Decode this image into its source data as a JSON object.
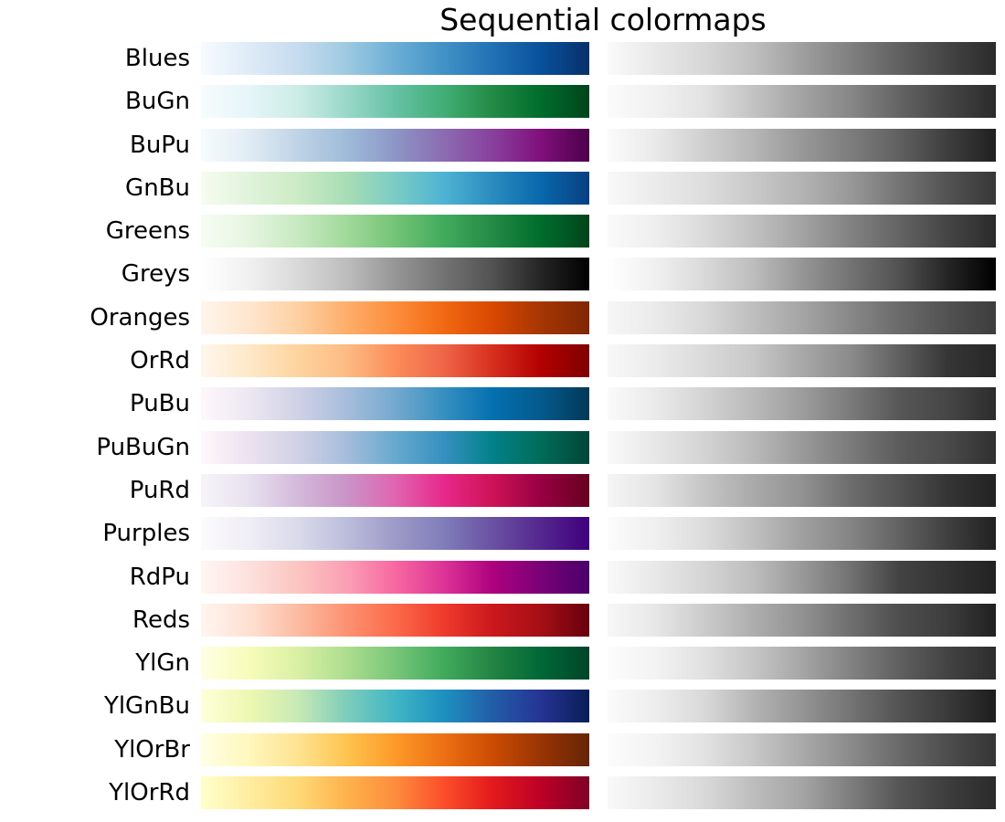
{
  "title": "Sequential colormaps",
  "chart_data": {
    "type": "heatmap",
    "title": "Sequential colormaps",
    "layout": "Each row: colormap name label (left), color gradient strip (center), grayscale luminance strip (right); no axes, no grid, no legend",
    "colormaps": [
      {
        "name": "Blues",
        "stops": [
          "#f7fbff",
          "#deebf7",
          "#c6dbef",
          "#9ecae1",
          "#6baed6",
          "#4292c6",
          "#2171b5",
          "#08519c",
          "#08306b"
        ]
      },
      {
        "name": "BuGn",
        "stops": [
          "#f7fcfd",
          "#e5f5f9",
          "#ccece6",
          "#99d8c9",
          "#66c2a4",
          "#41ae76",
          "#238b45",
          "#006d2c",
          "#00441b"
        ]
      },
      {
        "name": "BuPu",
        "stops": [
          "#f7fcfd",
          "#e0ecf4",
          "#bfd3e6",
          "#9ebcda",
          "#8c96c6",
          "#8c6bb1",
          "#88419d",
          "#810f7c",
          "#4d004b"
        ]
      },
      {
        "name": "GnBu",
        "stops": [
          "#f7fcf0",
          "#e0f3db",
          "#ccebc5",
          "#a8ddb5",
          "#7bccc4",
          "#4eb3d3",
          "#2b8cbe",
          "#0868ac",
          "#084081"
        ]
      },
      {
        "name": "Greens",
        "stops": [
          "#f7fcf5",
          "#e5f5e0",
          "#c7e9c0",
          "#a1d99b",
          "#74c476",
          "#41ab5d",
          "#238b45",
          "#006d2c",
          "#00441b"
        ]
      },
      {
        "name": "Greys",
        "stops": [
          "#ffffff",
          "#f0f0f0",
          "#d9d9d9",
          "#bdbdbd",
          "#969696",
          "#737373",
          "#525252",
          "#252525",
          "#000000"
        ]
      },
      {
        "name": "Oranges",
        "stops": [
          "#fff5eb",
          "#fee6ce",
          "#fdd0a2",
          "#fdae6b",
          "#fd8d3c",
          "#f16913",
          "#d94801",
          "#a63603",
          "#7f2704"
        ]
      },
      {
        "name": "OrRd",
        "stops": [
          "#fff7ec",
          "#fee8c8",
          "#fdd49e",
          "#fdbb84",
          "#fc8d59",
          "#ef6548",
          "#d7301f",
          "#b30000",
          "#7f0000"
        ]
      },
      {
        "name": "PuBu",
        "stops": [
          "#fff7fb",
          "#ece7f2",
          "#d0d1e6",
          "#a6bddb",
          "#74a9cf",
          "#3690c0",
          "#0570b0",
          "#045a8d",
          "#023858"
        ]
      },
      {
        "name": "PuBuGn",
        "stops": [
          "#fff7fb",
          "#ece2f0",
          "#d0d1e6",
          "#a6bddb",
          "#67a9cf",
          "#3690c0",
          "#02818a",
          "#016c59",
          "#014636"
        ]
      },
      {
        "name": "PuRd",
        "stops": [
          "#f7f4f9",
          "#e7e1ef",
          "#d4b9da",
          "#c994c7",
          "#df65b0",
          "#e7298a",
          "#ce1256",
          "#980043",
          "#67001f"
        ]
      },
      {
        "name": "Purples",
        "stops": [
          "#fcfbfd",
          "#efedf5",
          "#dadaeb",
          "#bcbddc",
          "#9e9ac8",
          "#807dba",
          "#6a51a3",
          "#54278f",
          "#3f007d"
        ]
      },
      {
        "name": "RdPu",
        "stops": [
          "#fff7f3",
          "#fde0dd",
          "#fcc5c0",
          "#fa9fb5",
          "#f768a1",
          "#dd3497",
          "#ae017e",
          "#7a0177",
          "#49006a"
        ]
      },
      {
        "name": "Reds",
        "stops": [
          "#fff5f0",
          "#fee0d2",
          "#fcbba1",
          "#fc9272",
          "#fb6a4a",
          "#ef3b2c",
          "#cb181d",
          "#a50f15",
          "#67000d"
        ]
      },
      {
        "name": "YlGn",
        "stops": [
          "#ffffe5",
          "#f7fcb9",
          "#d9f0a3",
          "#addd8e",
          "#78c679",
          "#41ab5d",
          "#238443",
          "#006837",
          "#004529"
        ]
      },
      {
        "name": "YlGnBu",
        "stops": [
          "#ffffd9",
          "#edf8b1",
          "#c7e9b4",
          "#7fcdbb",
          "#41b6c4",
          "#1d91c0",
          "#225ea8",
          "#253494",
          "#081d58"
        ]
      },
      {
        "name": "YlOrBr",
        "stops": [
          "#ffffe5",
          "#fff7bc",
          "#fee391",
          "#fec44f",
          "#fe9929",
          "#ec7014",
          "#cc4c02",
          "#993404",
          "#662506"
        ]
      },
      {
        "name": "YlOrRd",
        "stops": [
          "#ffffcc",
          "#ffeda0",
          "#fed976",
          "#feb24c",
          "#fd8d3c",
          "#fc4e2a",
          "#e31a1c",
          "#bd0026",
          "#800026"
        ]
      }
    ]
  }
}
